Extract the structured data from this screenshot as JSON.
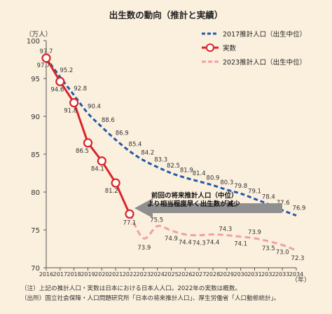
{
  "chart_data": {
    "type": "line",
    "title": "出生数の動向（推計と実績）",
    "yunit": "（万人）",
    "xunit": "（年）",
    "ylim": [
      70,
      100
    ],
    "yticks": [
      70,
      75,
      80,
      85,
      90,
      95,
      100
    ],
    "x": [
      2016,
      2017,
      2018,
      2019,
      2020,
      2021,
      2022,
      2023,
      2024,
      2025,
      2026,
      2027,
      2028,
      2029,
      2030,
      2031,
      2032,
      2033,
      2034
    ],
    "series": [
      {
        "name": "2017推計人口（出生中位）",
        "style": "dashed",
        "color": "#1f5aa8",
        "x": [
          2016,
          2017,
          2018,
          2019,
          2020,
          2021,
          2022,
          2023,
          2024,
          2025,
          2026,
          2027,
          2028,
          2029,
          2030,
          2031,
          2032,
          2033,
          2034
        ],
        "values": [
          97.7,
          95.2,
          92.8,
          90.4,
          88.6,
          86.9,
          85.4,
          84.2,
          83.3,
          82.5,
          81.9,
          81.4,
          80.9,
          80.3,
          79.8,
          79.1,
          78.4,
          77.6,
          76.9
        ]
      },
      {
        "name": "実数",
        "style": "solid-markers",
        "color": "#d7262a",
        "x": [
          2016,
          2017,
          2018,
          2019,
          2020,
          2021,
          2022
        ],
        "values": [
          97.7,
          94.6,
          91.8,
          86.5,
          84.1,
          81.2,
          77.1
        ]
      },
      {
        "name": "2023推計人口（出生中位）",
        "style": "dashed",
        "color": "#f0a0a4",
        "x": [
          2022,
          2023,
          2024,
          2025,
          2026,
          2027,
          2028,
          2029,
          2030,
          2031,
          2032,
          2033,
          2034
        ],
        "values": [
          77.1,
          73.9,
          75.5,
          74.9,
          74.4,
          74.3,
          74.4,
          74.3,
          74.1,
          73.9,
          73.5,
          73.0,
          72.3
        ]
      }
    ],
    "annotation": {
      "lines": [
        "前回の将来推計人口（中位）",
        "より相当程度早く出生数が減少"
      ]
    }
  },
  "notes": [
    "（注）上記の推計人口・実数は日本における日本人人口。2022年の実数は概数。",
    "（出所）国立社会保障・人口問題研究所「日本の将来推計人口」、厚生労働省「人口動態統計」。"
  ]
}
